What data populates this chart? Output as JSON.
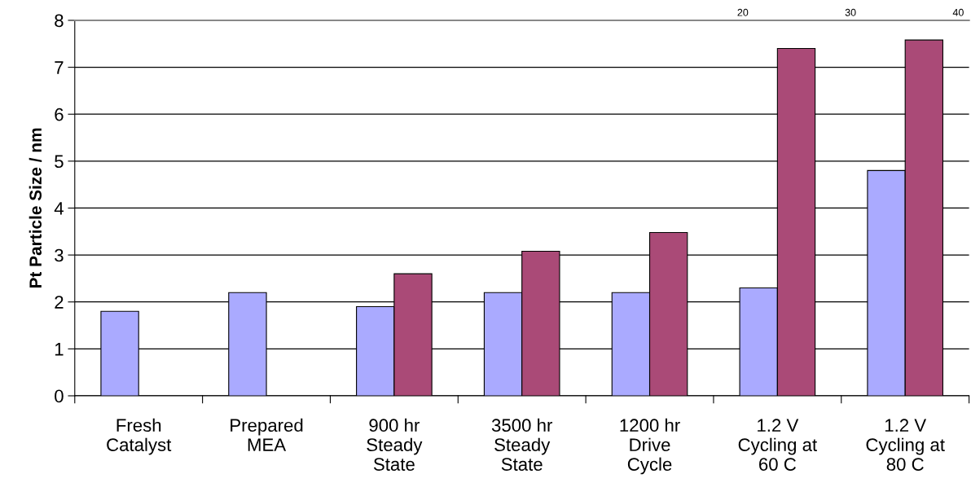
{
  "chart_data": {
    "type": "bar",
    "ylabel": "Pt Particle Size / nm",
    "categories": [
      "Fresh\nCatalyst",
      "Prepared\nMEA",
      "900 hr\nSteady\nState",
      "3500 hr\nSteady\nState",
      "1200 hr\nDrive\nCycle",
      "1.2 V\nCycling at\n60 C",
      "1.2 V\nCycling at\n80 C"
    ],
    "series": [
      {
        "color": "#aaaaff",
        "values": [
          1.8,
          2.2,
          1.9,
          2.2,
          2.2,
          2.3,
          4.8
        ]
      },
      {
        "color": "#aa4a77",
        "values": [
          null,
          null,
          2.6,
          3.08,
          3.48,
          7.4,
          7.58
        ]
      }
    ],
    "ylim": [
      0,
      8
    ],
    "yticks": [
      0,
      1,
      2,
      3,
      4,
      5,
      6,
      7,
      8
    ],
    "x2lim": [
      -42,
      41
    ],
    "x2ticks": [
      20,
      30,
      40
    ],
    "grid": "y",
    "legend": false
  }
}
